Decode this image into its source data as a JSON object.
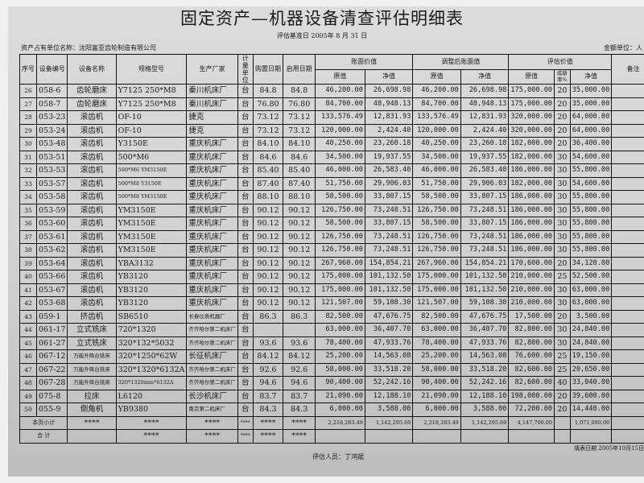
{
  "title": "固定资产—机器设备清查评估明细表",
  "base_date": "评估基准日    2005年 8 月 31 日",
  "owner": "资产占有单位名称：沈阳富亚齿轮制造有限公司",
  "currency_unit": "金额单位：人",
  "headers": {
    "seq": "序号",
    "code": "设备编号",
    "name": "设备名称",
    "model": "规格型号",
    "maker": "生产厂家",
    "unit": "计量单位",
    "purchase": "购置日期",
    "start": "启用日期",
    "book": "账面价值",
    "adjusted": "调整后账面值",
    "appraised": "评估价值",
    "orig": "原值",
    "net": "净值",
    "rate": "成新率%",
    "remark": "备注"
  },
  "rows": [
    {
      "seq": "26",
      "code": "058-6",
      "name": "齿轮磨床",
      "model": "Y7125 250*M8",
      "maker": "秦川机床厂",
      "unit": "台",
      "purchase": "84.8",
      "start": "84.8",
      "book_orig": "46,200.00",
      "book_net": "26,698.98",
      "adj_orig": "46,200.00",
      "adj_net": "26,698.98",
      "ev_orig": "175,000.00",
      "rate": "20",
      "ev_net": "35,000.00"
    },
    {
      "seq": "27",
      "code": "058-7",
      "name": "齿轮磨床",
      "model": "Y7125 250*M8",
      "maker": "秦川机床厂",
      "unit": "台",
      "purchase": "76.80",
      "start": "76.80",
      "book_orig": "84,700.00",
      "book_net": "48,948.13",
      "adj_orig": "84,700.00",
      "adj_net": "48,948.13",
      "ev_orig": "175,000.00",
      "rate": "20",
      "ev_net": "35,000.00"
    },
    {
      "seq": "28",
      "code": "053-23",
      "name": "滚齿机",
      "model": "OF-10",
      "maker": "捷克",
      "unit": "台",
      "purchase": "73.12",
      "start": "73.12",
      "book_orig": "133,576.49",
      "book_net": "12,831.93",
      "adj_orig": "133,576.49",
      "adj_net": "12,831.93",
      "ev_orig": "320,000.00",
      "rate": "20",
      "ev_net": "64,000.00"
    },
    {
      "seq": "29",
      "code": "053-24",
      "name": "滚齿机",
      "model": "OF-10",
      "maker": "捷克",
      "unit": "台",
      "purchase": "73.12",
      "start": "73.12",
      "book_orig": "120,000.00",
      "book_net": "2,424.40",
      "adj_orig": "120,000.00",
      "adj_net": "2,424.40",
      "ev_orig": "320,000.00",
      "rate": "20",
      "ev_net": "64,000.00"
    },
    {
      "seq": "30",
      "code": "053-48",
      "name": "滚齿机",
      "model": "Y3150E",
      "maker": "重庆机床厂",
      "unit": "台",
      "purchase": "84.10",
      "start": "84.10",
      "book_orig": "40,250.00",
      "book_net": "23,260.18",
      "adj_orig": "40,250.00",
      "adj_net": "23,260.18",
      "ev_orig": "182,000.00",
      "rate": "20",
      "ev_net": "36,400.00"
    },
    {
      "seq": "31",
      "code": "053-51",
      "name": "滚齿机",
      "model": "500*M6",
      "maker": "重庆机床厂",
      "unit": "台",
      "purchase": "84.6",
      "start": "84.6",
      "book_orig": "34,500.00",
      "book_net": "19,937.55",
      "adj_orig": "34,500.00",
      "adj_net": "19,937.55",
      "ev_orig": "182,000.00",
      "rate": "30",
      "ev_net": "54,600.00"
    },
    {
      "seq": "32",
      "code": "053-53",
      "name": "滚齿机",
      "model": "500*M6    YM3150E",
      "maker": "重庆机床厂",
      "unit": "台",
      "purchase": "85.40",
      "start": "85.40",
      "book_orig": "46,000.00",
      "book_net": "26,583.40",
      "adj_orig": "46,000.00",
      "adj_net": "26,583.40",
      "ev_orig": "186,000.00",
      "rate": "30",
      "ev_net": "55,800.00"
    },
    {
      "seq": "33",
      "code": "053-57",
      "name": "滚齿机",
      "model": "500*M8    Y3150E",
      "maker": "重庆机床厂",
      "unit": "台",
      "purchase": "87.40",
      "start": "87.40",
      "book_orig": "51,750.00",
      "book_net": "29,906.03",
      "adj_orig": "51,750.00",
      "adj_net": "29,906.03",
      "ev_orig": "182,000.00",
      "rate": "30",
      "ev_net": "54,600.00"
    },
    {
      "seq": "34",
      "code": "053-58",
      "name": "滚齿机",
      "model": "500*M8    YM3150E",
      "maker": "重庆机床厂",
      "unit": "台",
      "purchase": "88.10",
      "start": "88.10",
      "book_orig": "58,500.00",
      "book_net": "33,807.15",
      "adj_orig": "58,500.00",
      "adj_net": "33,807.15",
      "ev_orig": "186,000.00",
      "rate": "30",
      "ev_net": "55,800.00"
    },
    {
      "seq": "35",
      "code": "053-59",
      "name": "滚齿机",
      "model": "YM3150E",
      "maker": "重庆机床厂",
      "unit": "台",
      "purchase": "90.12",
      "start": "90.12",
      "book_orig": "126,750.00",
      "book_net": "73,248.51",
      "adj_orig": "126,750.00",
      "adj_net": "73,248.51",
      "ev_orig": "186,000.00",
      "rate": "30",
      "ev_net": "55,800.00"
    },
    {
      "seq": "36",
      "code": "053-60",
      "name": "滚齿机",
      "model": "YM3150E",
      "maker": "重庆机床厂",
      "unit": "台",
      "purchase": "90.12",
      "start": "90.12",
      "book_orig": "58,500.00",
      "book_net": "33,807.15",
      "adj_orig": "58,500.00",
      "adj_net": "33,807.15",
      "ev_orig": "186,000.00",
      "rate": "30",
      "ev_net": "55,800.00"
    },
    {
      "seq": "37",
      "code": "053-61",
      "name": "滚齿机",
      "model": "YM3150E",
      "maker": "重庆机床厂",
      "unit": "台",
      "purchase": "90.12",
      "start": "90.12",
      "book_orig": "126,750.00",
      "book_net": "73,248.51",
      "adj_orig": "126,750.00",
      "adj_net": "73,248.51",
      "ev_orig": "186,000.00",
      "rate": "30",
      "ev_net": "55,800.00"
    },
    {
      "seq": "38",
      "code": "053-62",
      "name": "滚齿机",
      "model": "YM3150E",
      "maker": "重庆机床厂",
      "unit": "台",
      "purchase": "90.12",
      "start": "90.12",
      "book_orig": "126,750.00",
      "book_net": "73,248.51",
      "adj_orig": "126,750.00",
      "adj_net": "73,248.51",
      "ev_orig": "186,000.00",
      "rate": "30",
      "ev_net": "55,800.00"
    },
    {
      "seq": "39",
      "code": "053-64",
      "name": "滚齿机",
      "model": "YBA3132",
      "maker": "重庆机床厂",
      "unit": "台",
      "purchase": "90.12",
      "start": "90.12",
      "book_orig": "267,960.00",
      "book_net": "154,854.21",
      "adj_orig": "267,960.00",
      "adj_net": "154,854.21",
      "ev_orig": "170,600.00",
      "rate": "20",
      "ev_net": "34,120.00"
    },
    {
      "seq": "40",
      "code": "053-66",
      "name": "滚齿机",
      "model": "YB3120",
      "maker": "重庆机床厂",
      "unit": "台",
      "purchase": "90.12",
      "start": "90.12",
      "book_orig": "175,000.00",
      "book_net": "101,132.50",
      "adj_orig": "175,000.00",
      "adj_net": "101,132.50",
      "ev_orig": "210,000.00",
      "rate": "25",
      "ev_net": "52,500.00"
    },
    {
      "seq": "41",
      "code": "053-67",
      "name": "滚齿机",
      "model": "YB3120",
      "maker": "重庆机床厂",
      "unit": "台",
      "purchase": "90.12",
      "start": "90.12",
      "book_orig": "175,000.00",
      "book_net": "101,132.50",
      "adj_orig": "175,000.00",
      "adj_net": "101,132.50",
      "ev_orig": "210,000.00",
      "rate": "30",
      "ev_net": "63,000.00"
    },
    {
      "seq": "42",
      "code": "053-68",
      "name": "滚齿机",
      "model": "YB3120",
      "maker": "重庆机床厂",
      "unit": "台",
      "purchase": "90.12",
      "start": "90.12",
      "book_orig": "121,507.00",
      "book_net": "59,108.30",
      "adj_orig": "121,507.00",
      "adj_net": "59,108.30",
      "ev_orig": "210,000.00",
      "rate": "30",
      "ev_net": "63,000.00"
    },
    {
      "seq": "43",
      "code": "059-1",
      "name": "挤齿机",
      "model": "SB6510",
      "maker": "长春仪表机器厂",
      "unit": "台",
      "purchase": "86.3",
      "start": "86.3",
      "book_orig": "82,500.00",
      "book_net": "47,676.75",
      "adj_orig": "82,500.00",
      "adj_net": "47,676.75",
      "ev_orig": "17,500.00",
      "rate": "20",
      "ev_net": "3,500.00"
    },
    {
      "seq": "44",
      "code": "061-17",
      "name": "立式铣床",
      "model": "720*1320",
      "maker": "齐齐哈尔第二机床厂",
      "unit": "台",
      "purchase": "",
      "start": "",
      "book_orig": "63,000.00",
      "book_net": "36,407.70",
      "adj_orig": "63,000.00",
      "adj_net": "36,407.70",
      "ev_orig": "82,800.00",
      "rate": "30",
      "ev_net": "24,840.00"
    },
    {
      "seq": "45",
      "code": "061-27",
      "name": "立式铣床",
      "model": "320*132*5032",
      "maker": "齐齐哈尔第二机床厂",
      "unit": "台",
      "purchase": "93.6",
      "start": "93.6",
      "book_orig": "78,400.00",
      "book_net": "47,933.76",
      "adj_orig": "78,400.00",
      "adj_net": "47,933.76",
      "ev_orig": "82,800.00",
      "rate": "30",
      "ev_net": "24,840.00"
    },
    {
      "seq": "46",
      "code": "067-12",
      "name": "万能升降台铣床",
      "model": "320*1250*62W",
      "maker": "长征机床厂",
      "unit": "台",
      "purchase": "84.12",
      "start": "84.12",
      "book_orig": "25,200.00",
      "book_net": "14,563.08",
      "adj_orig": "25,200.00",
      "adj_net": "14,563.08",
      "ev_orig": "76,600.00",
      "rate": "25",
      "ev_net": "19,150.00"
    },
    {
      "seq": "47",
      "code": "067-22",
      "name": "万能升降台铣床",
      "model": "320*1320*6132A",
      "maker": "齐齐哈尔第二机床厂",
      "unit": "台",
      "purchase": "92.6",
      "start": "92.6",
      "book_orig": "58,000.00",
      "book_net": "33,518.20",
      "adj_orig": "58,000.00",
      "adj_net": "33,518.20",
      "ev_orig": "82,600.00",
      "rate": "25",
      "ev_net": "20,650.00"
    },
    {
      "seq": "48",
      "code": "067-28",
      "name": "万能升降台铣床",
      "model": "320*1320mm*6132A",
      "maker": "齐齐哈尔第二机床厂",
      "unit": "台",
      "purchase": "94.6",
      "start": "94.6",
      "book_orig": "90,400.00",
      "book_net": "52,242.16",
      "adj_orig": "90,400.00",
      "adj_net": "52,242.16",
      "ev_orig": "82,600.00",
      "rate": "40",
      "ev_net": "33,040.00"
    },
    {
      "seq": "49",
      "code": "075-8",
      "name": "拉床",
      "model": "L6120",
      "maker": "长沙机床厂",
      "unit": "台",
      "purchase": "83.7",
      "start": "83.7",
      "book_orig": "21,090.00",
      "book_net": "12,188.10",
      "adj_orig": "21,090.00",
      "adj_net": "12,188.10",
      "ev_orig": "198,000.00",
      "rate": "20",
      "ev_net": "39,600.00"
    },
    {
      "seq": "50",
      "code": "055-9",
      "name": "倒角机",
      "model": "YB9380",
      "maker": "南京第二机床厂",
      "unit": "台",
      "purchase": "84.3",
      "start": "84.3",
      "book_orig": "6,000.00",
      "book_net": "3,588.00",
      "adj_orig": "6,000.00",
      "adj_net": "3,588.00",
      "ev_orig": "72,200.00",
      "rate": "20",
      "ev_net": "14,440.00"
    }
  ],
  "subtotal": {
    "label": "本页小计",
    "stars": "****",
    "book_orig": "2,218,283.49",
    "book_net": "1,142,295.69",
    "adj_orig": "2,218,283.49",
    "adj_net": "1,142,295.69",
    "ev_orig": "4,147,700.00",
    "ev_net": "1,071,080.00"
  },
  "total": {
    "label": "合  计",
    "stars": "****"
  },
  "fill_date": "填表日期 2005年10月15日",
  "appraiser": "评估人员：丁鸿斌"
}
